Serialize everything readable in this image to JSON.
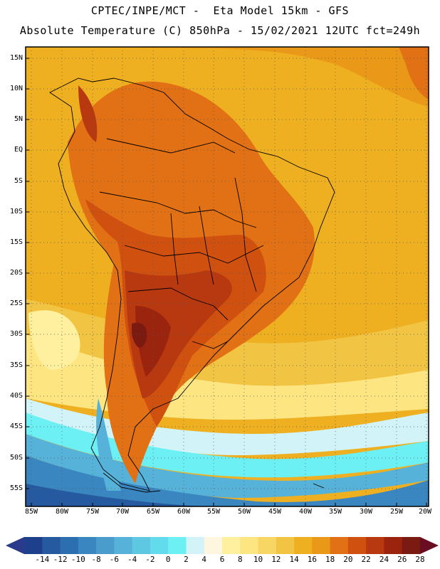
{
  "header": {
    "line1": "CPTEC/INPE/MCT -  Eta Model 15km - GFS",
    "line2": "Absolute Temperature (C) 850hPa - 15/02/2021 12UTC fct=249h"
  },
  "map": {
    "region": "South America",
    "lat_labels": [
      "15N",
      "10N",
      "5N",
      "EQ",
      "5S",
      "10S",
      "15S",
      "20S",
      "25S",
      "30S",
      "35S",
      "40S",
      "45S",
      "50S",
      "55S"
    ],
    "lon_labels": [
      "85W",
      "80W",
      "75W",
      "70W",
      "65W",
      "60W",
      "55W",
      "50W",
      "45W",
      "40W",
      "35W",
      "30W",
      "25W",
      "20W"
    ]
  },
  "legend": {
    "labels": [
      "-14",
      "-12",
      "-10",
      "-8",
      "-6",
      "-4",
      "-2",
      "0",
      "2",
      "4",
      "6",
      "8",
      "10",
      "12",
      "14",
      "16",
      "18",
      "20",
      "22",
      "24",
      "26",
      "28"
    ],
    "colors": [
      "#1e3f8c",
      "#2559a0",
      "#2c6fb0",
      "#3a86c0",
      "#4a9ccc",
      "#56b2d8",
      "#5ec7e2",
      "#62dcec",
      "#6cf0f4",
      "#d2f4f8",
      "#fff6e0",
      "#fff0a0",
      "#fde682",
      "#f8d664",
      "#f2c444",
      "#eeb020",
      "#ea9818",
      "#e27014",
      "#d05010",
      "#b83810",
      "#9a240e",
      "#7a1a10"
    ],
    "low_arrow_color": "#2b3a8a",
    "high_arrow_color": "#6b0d22"
  }
}
